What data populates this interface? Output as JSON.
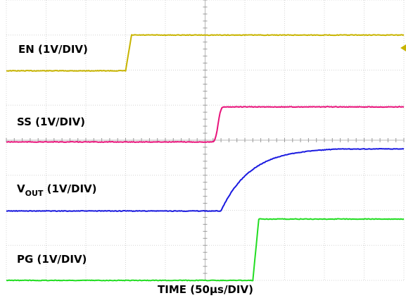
{
  "chart_data": {
    "type": "line",
    "title": "",
    "xlabel": "TIME (50µs/DIV)",
    "ylabel": "",
    "divisions": {
      "x": 10,
      "y": 8
    },
    "xlim": [
      0,
      10
    ],
    "grid": true,
    "series": [
      {
        "name": "EN (1V/DIV)",
        "label_main": "EN (1V/DIV)",
        "label_sub": "",
        "label_rest": "",
        "color": "#c8b400",
        "baseline_div": 5.98,
        "high_div": 7.0,
        "edge_start_div": 3.0,
        "edge_end_div": 3.15,
        "shape": "step"
      },
      {
        "name": "SS (1V/DIV)",
        "label_main": "SS (1V/DIV)",
        "label_sub": "",
        "label_rest": "",
        "color": "#e8127a",
        "baseline_div": 3.95,
        "high_div": 4.95,
        "edge_start_div": 5.2,
        "edge_end_div": 5.45,
        "shape": "ramp"
      },
      {
        "name": "VOUT (1V/DIV)",
        "label_main": "V",
        "label_sub": "OUT",
        "label_rest": " (1V/DIV)",
        "color": "#1a1ae0",
        "baseline_div": 1.98,
        "high_div": 3.75,
        "edge_start_div": 5.4,
        "edge_end_div": 8.5,
        "shape": "exp"
      },
      {
        "name": "PG (1V/DIV)",
        "label_main": "PG (1V/DIV)",
        "label_sub": "",
        "label_rest": "",
        "color": "#22dd22",
        "baseline_div": 0.0,
        "high_div": 1.75,
        "edge_start_div": 6.2,
        "edge_end_div": 6.35,
        "shape": "step"
      }
    ],
    "marker_color": "#c8b400"
  }
}
